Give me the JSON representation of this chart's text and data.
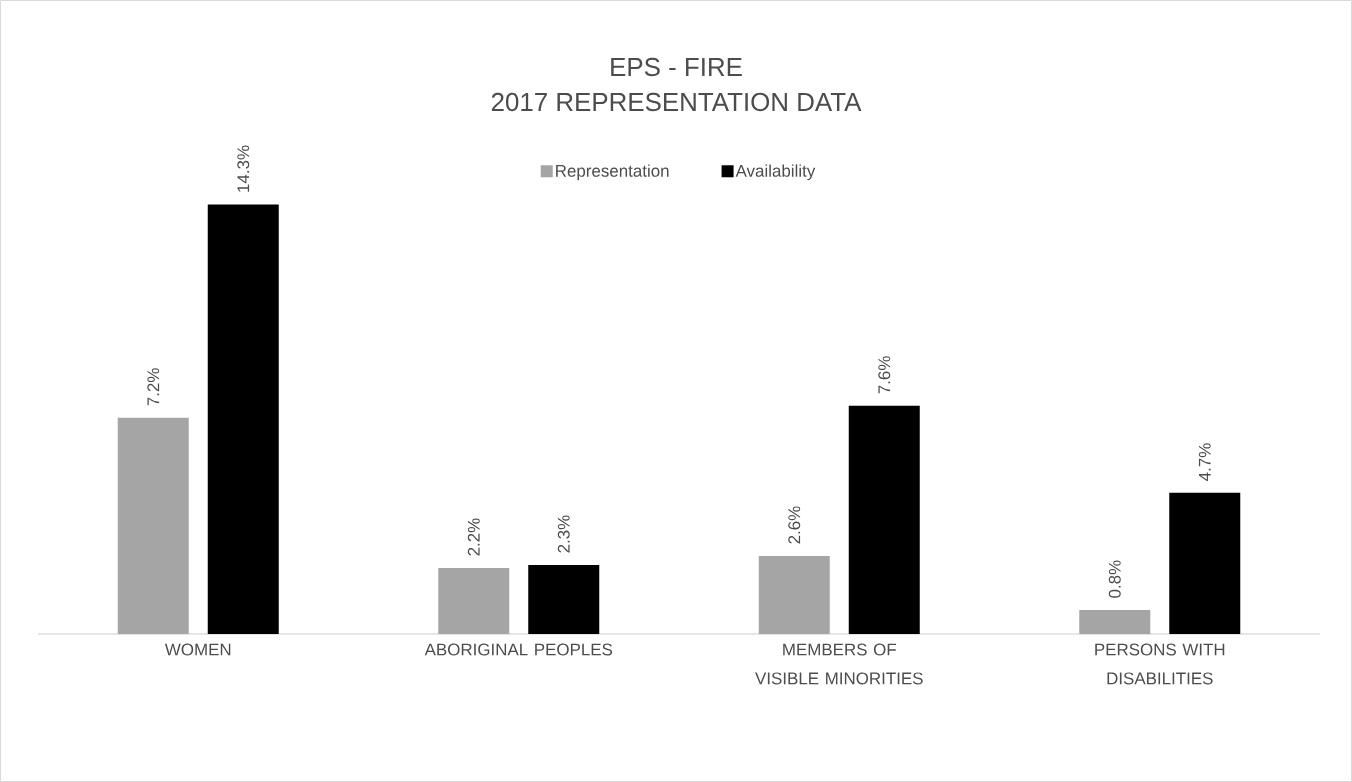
{
  "chart_data": {
    "type": "bar",
    "title": "EPS - FIRE",
    "subtitle": "2017 REPRESENTATION DATA",
    "categories": [
      "WOMEN",
      "ABORIGINAL PEOPLES",
      "MEMBERS OF VISIBLE MINORITIES",
      "PERSONS WITH DISABILITIES"
    ],
    "series": [
      {
        "name": "Representation",
        "color": "#a5a5a5",
        "values": [
          7.2,
          2.2,
          2.6,
          0.8
        ],
        "value_labels": [
          "7.2%",
          "2.2%",
          "2.6%",
          "0.8%"
        ]
      },
      {
        "name": "Availability",
        "color": "#000000",
        "values": [
          14.3,
          2.3,
          7.6,
          4.7
        ],
        "value_labels": [
          "14.3%",
          "2.3%",
          "7.6%",
          "4.7%"
        ]
      }
    ],
    "tick_labels": "x",
    "legend": "top"
  }
}
